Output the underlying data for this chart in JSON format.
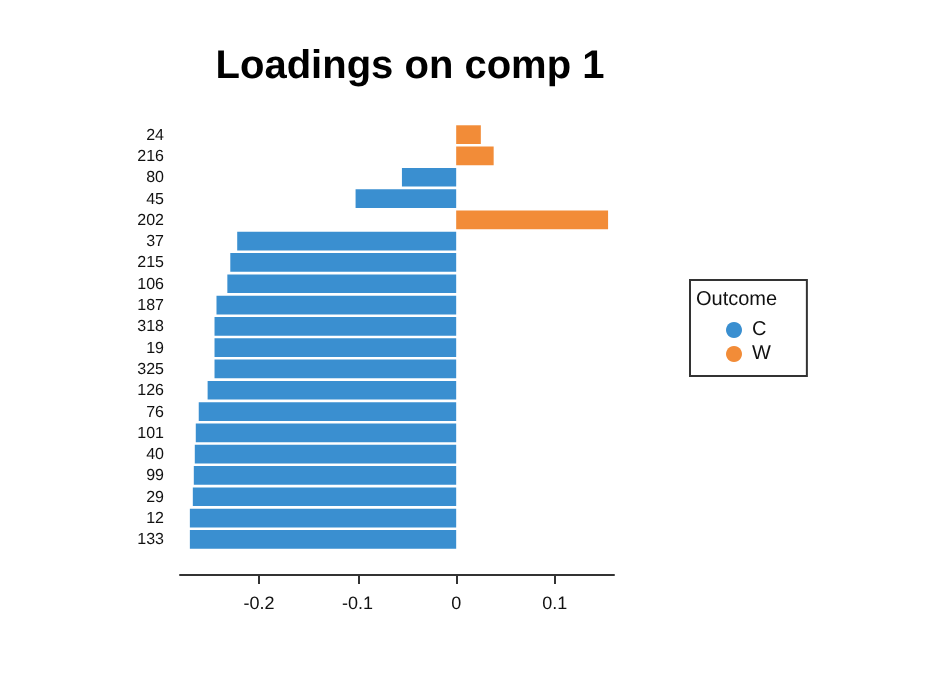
{
  "chart_data": {
    "type": "bar",
    "orientation": "horizontal",
    "title": "Loadings on comp 1",
    "legend_title": "Outcome",
    "legend": "right",
    "categories": [
      "24",
      "216",
      "80",
      "45",
      "202",
      "37",
      "215",
      "106",
      "187",
      "318",
      "19",
      "325",
      "126",
      "76",
      "101",
      "40",
      "99",
      "29",
      "12",
      "133"
    ],
    "series": [
      {
        "name": "C",
        "color": "#3a8fd0",
        "values": [
          null,
          null,
          -0.055,
          -0.102,
          null,
          -0.222,
          -0.229,
          -0.232,
          -0.243,
          -0.245,
          -0.245,
          -0.245,
          -0.252,
          -0.261,
          -0.264,
          -0.265,
          -0.266,
          -0.267,
          -0.27,
          -0.27
        ]
      },
      {
        "name": "W",
        "color": "#f28c38",
        "values": [
          0.025,
          0.038,
          null,
          null,
          0.154,
          null,
          null,
          null,
          null,
          null,
          null,
          null,
          null,
          null,
          null,
          null,
          null,
          null,
          null,
          null
        ]
      }
    ],
    "xlim": [
      -0.28,
      0.16
    ],
    "xticks": [
      -0.2,
      -0.1,
      0,
      0.1
    ],
    "grid": false
  }
}
